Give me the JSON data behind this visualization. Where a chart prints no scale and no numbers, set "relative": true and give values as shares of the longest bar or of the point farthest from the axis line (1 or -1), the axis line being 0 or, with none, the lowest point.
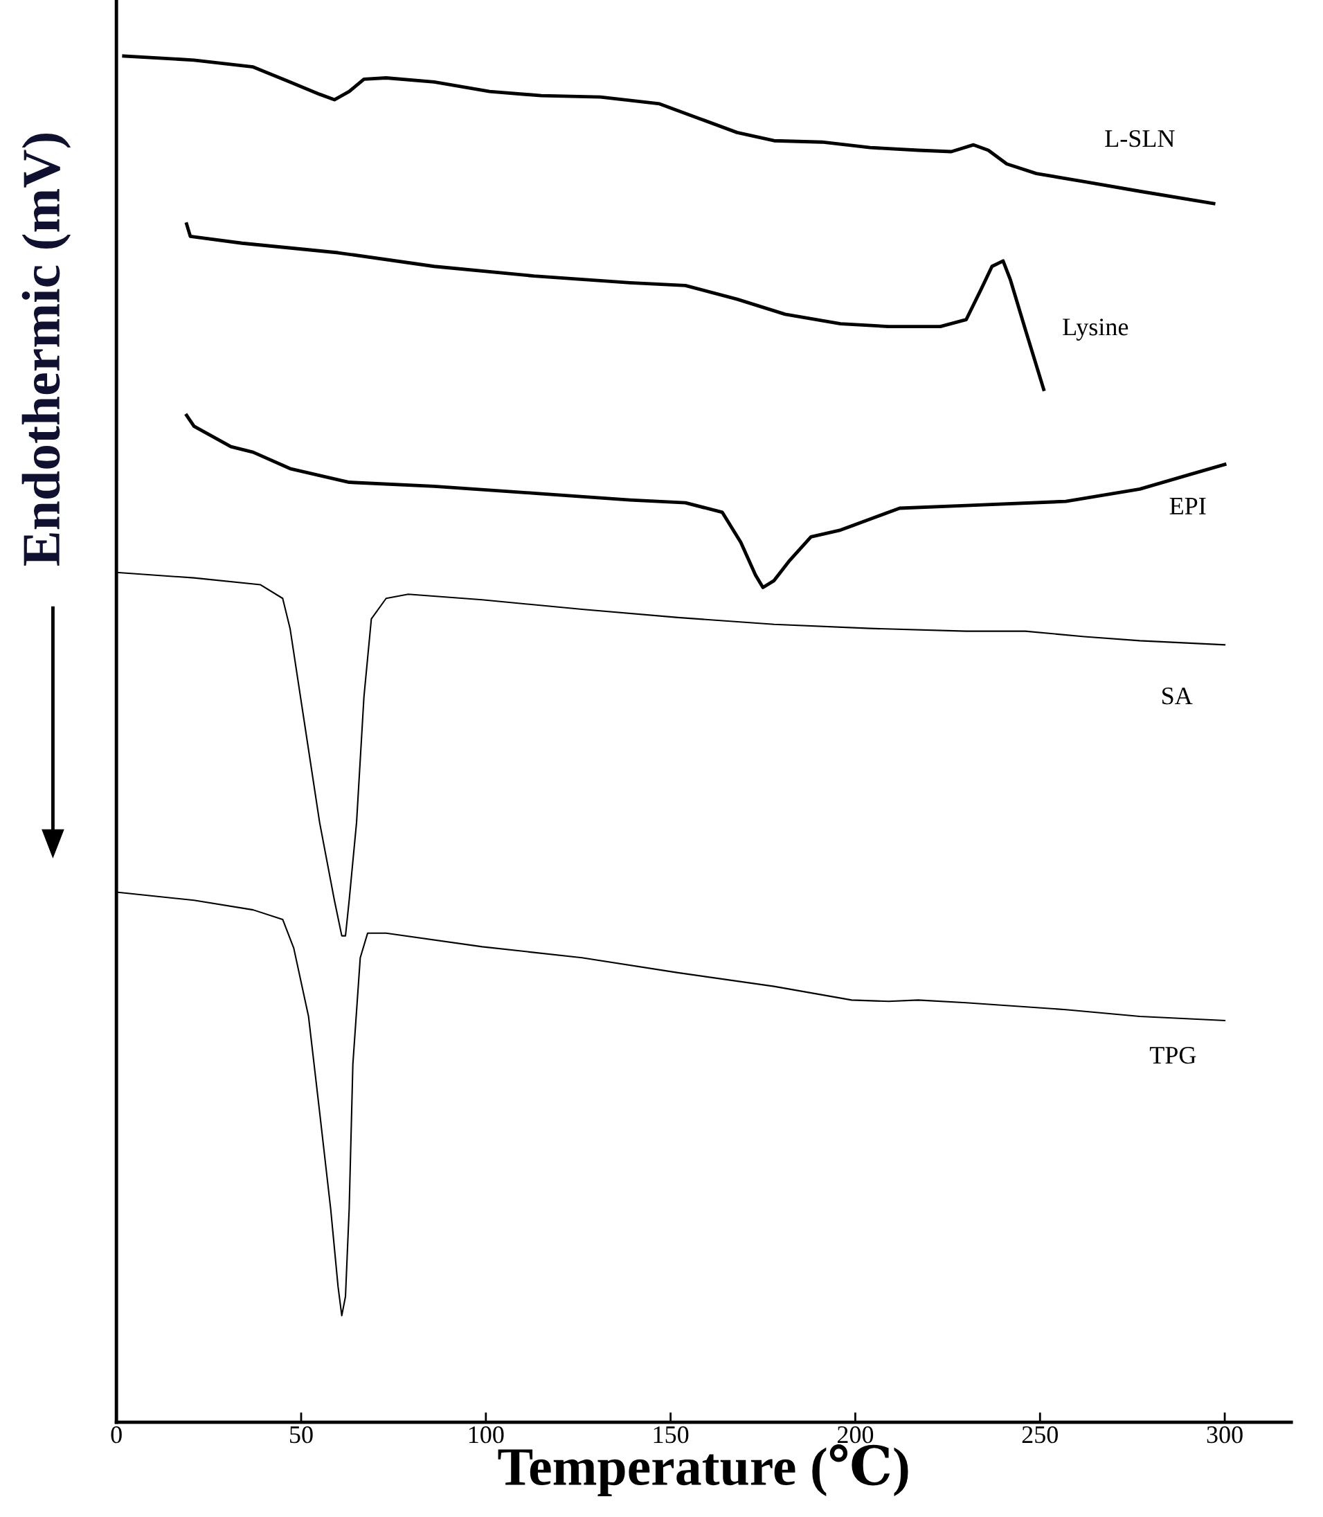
{
  "chart_data": {
    "type": "line",
    "relative": true,
    "xlabel": "Temperature (℃)",
    "ylabel": "Endothermic (mV)",
    "xlim": [
      0,
      318
    ],
    "xticks": [
      0,
      50,
      100,
      150,
      200,
      250,
      300
    ],
    "tick_labels": "x",
    "grid": false,
    "legend": false,
    "marker": "none",
    "line_style": "solid",
    "series": [
      {
        "name": "L-SLN",
        "color": "#000000",
        "x": [
          2,
          21,
          37,
          47,
          55,
          59,
          63,
          67,
          73,
          86,
          101,
          115,
          131,
          147,
          157,
          168,
          178,
          191,
          204,
          217,
          226,
          232,
          236,
          241,
          249,
          262,
          277,
          297
        ],
        "values": [
          1.0,
          0.997,
          0.992,
          0.981,
          0.972,
          0.968,
          0.974,
          0.983,
          0.984,
          0.981,
          0.974,
          0.971,
          0.97,
          0.965,
          0.955,
          0.944,
          0.938,
          0.937,
          0.933,
          0.931,
          0.93,
          0.935,
          0.931,
          0.921,
          0.914,
          0.908,
          0.901,
          0.892
        ]
      },
      {
        "name": "Lysine",
        "color": "#000000",
        "x": [
          19,
          20,
          34,
          60,
          86,
          113,
          139,
          154,
          168,
          181,
          196,
          209,
          223,
          230,
          234,
          237,
          240,
          242,
          246,
          251
        ],
        "values": [
          0.877,
          0.868,
          0.863,
          0.856,
          0.846,
          0.839,
          0.834,
          0.832,
          0.822,
          0.811,
          0.804,
          0.802,
          0.802,
          0.807,
          0.829,
          0.846,
          0.85,
          0.836,
          0.8,
          0.756
        ]
      },
      {
        "name": "EPI",
        "color": "#000000",
        "x": [
          19,
          21,
          31,
          37,
          47,
          63,
          86,
          113,
          139,
          154,
          164,
          169,
          173,
          175,
          178,
          182,
          188,
          196,
          204,
          212,
          230,
          257,
          277,
          291,
          300
        ],
        "values": [
          0.737,
          0.729,
          0.714,
          0.71,
          0.698,
          0.688,
          0.685,
          0.68,
          0.675,
          0.673,
          0.666,
          0.644,
          0.62,
          0.611,
          0.616,
          0.63,
          0.648,
          0.653,
          0.661,
          0.669,
          0.671,
          0.674,
          0.683,
          0.694,
          0.701
        ]
      },
      {
        "name": "SA",
        "color": "#000000",
        "x": [
          0,
          21,
          39,
          45,
          47,
          51,
          55,
          59,
          61,
          62,
          63,
          65,
          67,
          69,
          73,
          79,
          99,
          126,
          152,
          178,
          204,
          230,
          246,
          262,
          277,
          300
        ],
        "values": [
          0.622,
          0.618,
          0.613,
          0.603,
          0.581,
          0.51,
          0.439,
          0.382,
          0.356,
          0.356,
          0.382,
          0.439,
          0.531,
          0.588,
          0.603,
          0.606,
          0.602,
          0.595,
          0.589,
          0.584,
          0.581,
          0.579,
          0.579,
          0.575,
          0.572,
          0.569
        ]
      },
      {
        "name": "TPG",
        "color": "#000000",
        "x": [
          0,
          21,
          37,
          45,
          48,
          52,
          55,
          58,
          60,
          61,
          62,
          63,
          64,
          66,
          68,
          73,
          99,
          126,
          152,
          178,
          199,
          209,
          217,
          230,
          257,
          277,
          300
        ],
        "values": [
          0.388,
          0.382,
          0.375,
          0.368,
          0.347,
          0.297,
          0.227,
          0.156,
          0.099,
          0.078,
          0.092,
          0.156,
          0.262,
          0.34,
          0.358,
          0.358,
          0.348,
          0.34,
          0.329,
          0.319,
          0.309,
          0.308,
          0.309,
          0.307,
          0.302,
          0.297,
          0.294
        ]
      }
    ]
  }
}
